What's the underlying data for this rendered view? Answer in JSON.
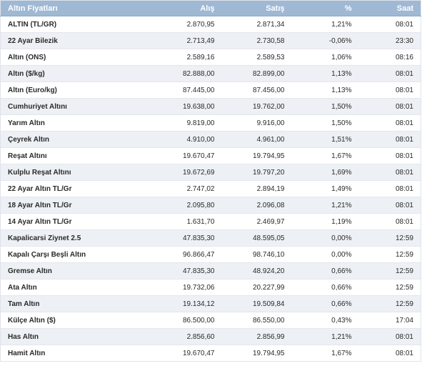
{
  "table": {
    "headers": {
      "name": "Altın Fiyatları",
      "buy": "Alış",
      "sell": "Satış",
      "change": "%",
      "time": "Saat"
    },
    "rows": [
      {
        "name": "ALTIN (TL/GR)",
        "buy": "2.870,95",
        "sell": "2.871,34",
        "change": "1,21%",
        "time": "08:01"
      },
      {
        "name": "22 Ayar Bilezik",
        "buy": "2.713,49",
        "sell": "2.730,58",
        "change": "-0,06%",
        "time": "23:30"
      },
      {
        "name": "Altın (ONS)",
        "buy": "2.589,16",
        "sell": "2.589,53",
        "change": "1,06%",
        "time": "08:16"
      },
      {
        "name": "Altın ($/kg)",
        "buy": "82.888,00",
        "sell": "82.899,00",
        "change": "1,13%",
        "time": "08:01"
      },
      {
        "name": "Altın (Euro/kg)",
        "buy": "87.445,00",
        "sell": "87.456,00",
        "change": "1,13%",
        "time": "08:01"
      },
      {
        "name": "Cumhuriyet Altını",
        "buy": "19.638,00",
        "sell": "19.762,00",
        "change": "1,50%",
        "time": "08:01"
      },
      {
        "name": "Yarım Altın",
        "buy": "9.819,00",
        "sell": "9.916,00",
        "change": "1,50%",
        "time": "08:01"
      },
      {
        "name": "Çeyrek Altın",
        "buy": "4.910,00",
        "sell": "4.961,00",
        "change": "1,51%",
        "time": "08:01"
      },
      {
        "name": "Reşat Altını",
        "buy": "19.670,47",
        "sell": "19.794,95",
        "change": "1,67%",
        "time": "08:01"
      },
      {
        "name": "Kulplu Reşat Altını",
        "buy": "19.672,69",
        "sell": "19.797,20",
        "change": "1,69%",
        "time": "08:01"
      },
      {
        "name": "22 Ayar Altın TL/Gr",
        "buy": "2.747,02",
        "sell": "2.894,19",
        "change": "1,49%",
        "time": "08:01"
      },
      {
        "name": "18 Ayar Altın TL/Gr",
        "buy": "2.095,80",
        "sell": "2.096,08",
        "change": "1,21%",
        "time": "08:01"
      },
      {
        "name": "14 Ayar Altın TL/Gr",
        "buy": "1.631,70",
        "sell": "2.469,97",
        "change": "1,19%",
        "time": "08:01"
      },
      {
        "name": "Kapalicarsi Ziynet 2.5",
        "buy": "47.835,30",
        "sell": "48.595,05",
        "change": "0,00%",
        "time": "12:59"
      },
      {
        "name": "Kapalı Çarşı Beşli Altın",
        "buy": "96.866,47",
        "sell": "98.746,10",
        "change": "0,00%",
        "time": "12:59"
      },
      {
        "name": "Gremse Altın",
        "buy": "47.835,30",
        "sell": "48.924,20",
        "change": "0,66%",
        "time": "12:59"
      },
      {
        "name": "Ata Altın",
        "buy": "19.732,06",
        "sell": "20.227,99",
        "change": "0,66%",
        "time": "12:59"
      },
      {
        "name": "Tam Altın",
        "buy": "19.134,12",
        "sell": "19.509,84",
        "change": "0,66%",
        "time": "12:59"
      },
      {
        "name": "Külçe Altın ($)",
        "buy": "86.500,00",
        "sell": "86.550,00",
        "change": "0,43%",
        "time": "17:04"
      },
      {
        "name": "Has Altın",
        "buy": "2.856,60",
        "sell": "2.856,99",
        "change": "1,21%",
        "time": "08:01"
      },
      {
        "name": "Hamit Altın",
        "buy": "19.670,47",
        "sell": "19.794,95",
        "change": "1,67%",
        "time": "08:01"
      }
    ]
  },
  "colors": {
    "header_bg": "#9fb8d3",
    "header_text": "#ffffff",
    "row_alt_bg": "#edf0f4"
  }
}
